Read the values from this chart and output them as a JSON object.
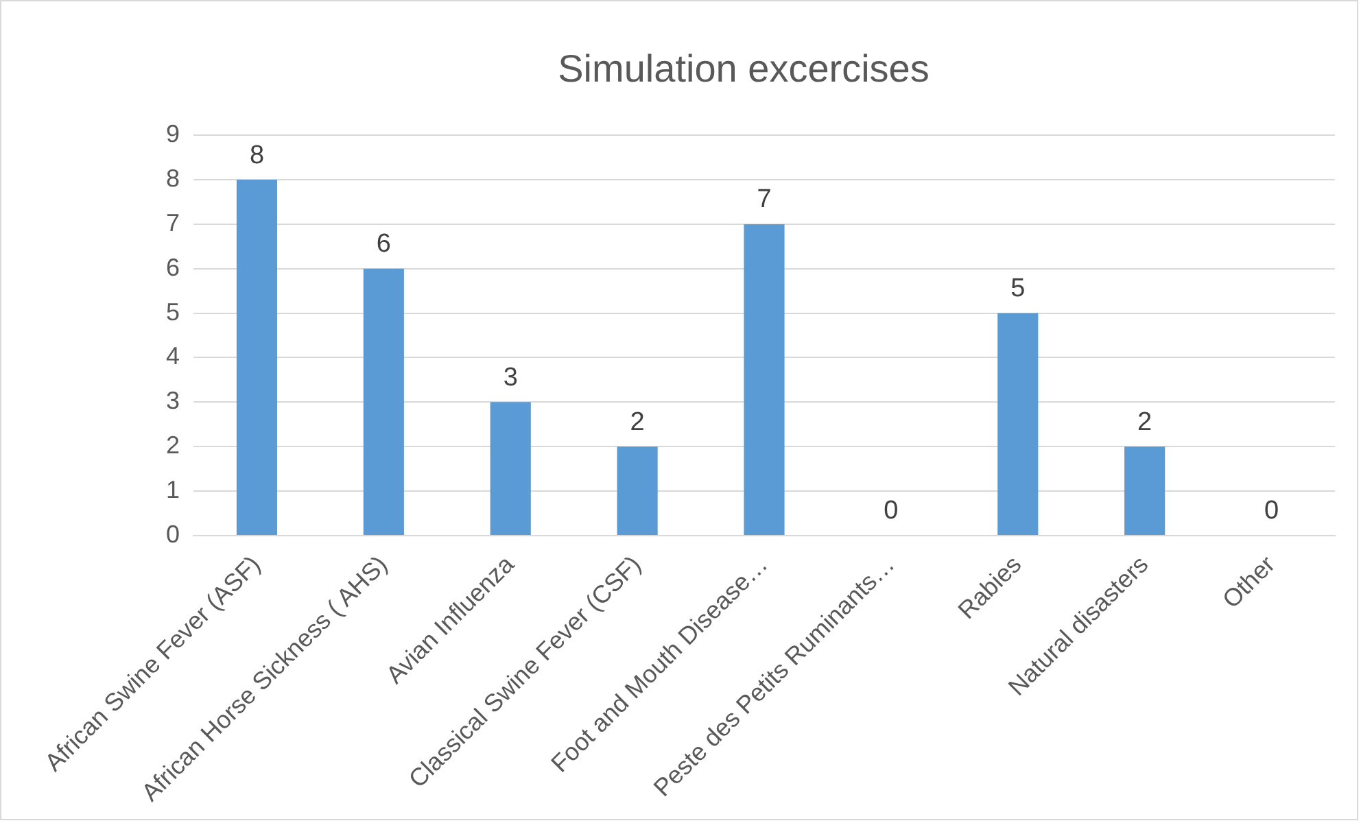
{
  "chart_data": {
    "type": "bar",
    "title": "Simulation excercises",
    "categories": [
      "African Swine Fever (ASF)",
      "African Horse Sickness ( AHS)",
      "Avian Influenza",
      "Classical Swine Fever (CSF)",
      "Foot and Mouth Disease…",
      "Peste des Petits Ruminants…",
      "Rabies",
      "Natural disasters",
      "Other"
    ],
    "values": [
      8,
      6,
      3,
      2,
      7,
      0,
      5,
      2,
      0
    ],
    "color": "#5b9bd5",
    "ylim": [
      0,
      9
    ],
    "yticks": [
      0,
      1,
      2,
      3,
      4,
      5,
      6,
      7,
      8,
      9
    ],
    "grid": "y",
    "data_labels": true,
    "legend": false
  }
}
